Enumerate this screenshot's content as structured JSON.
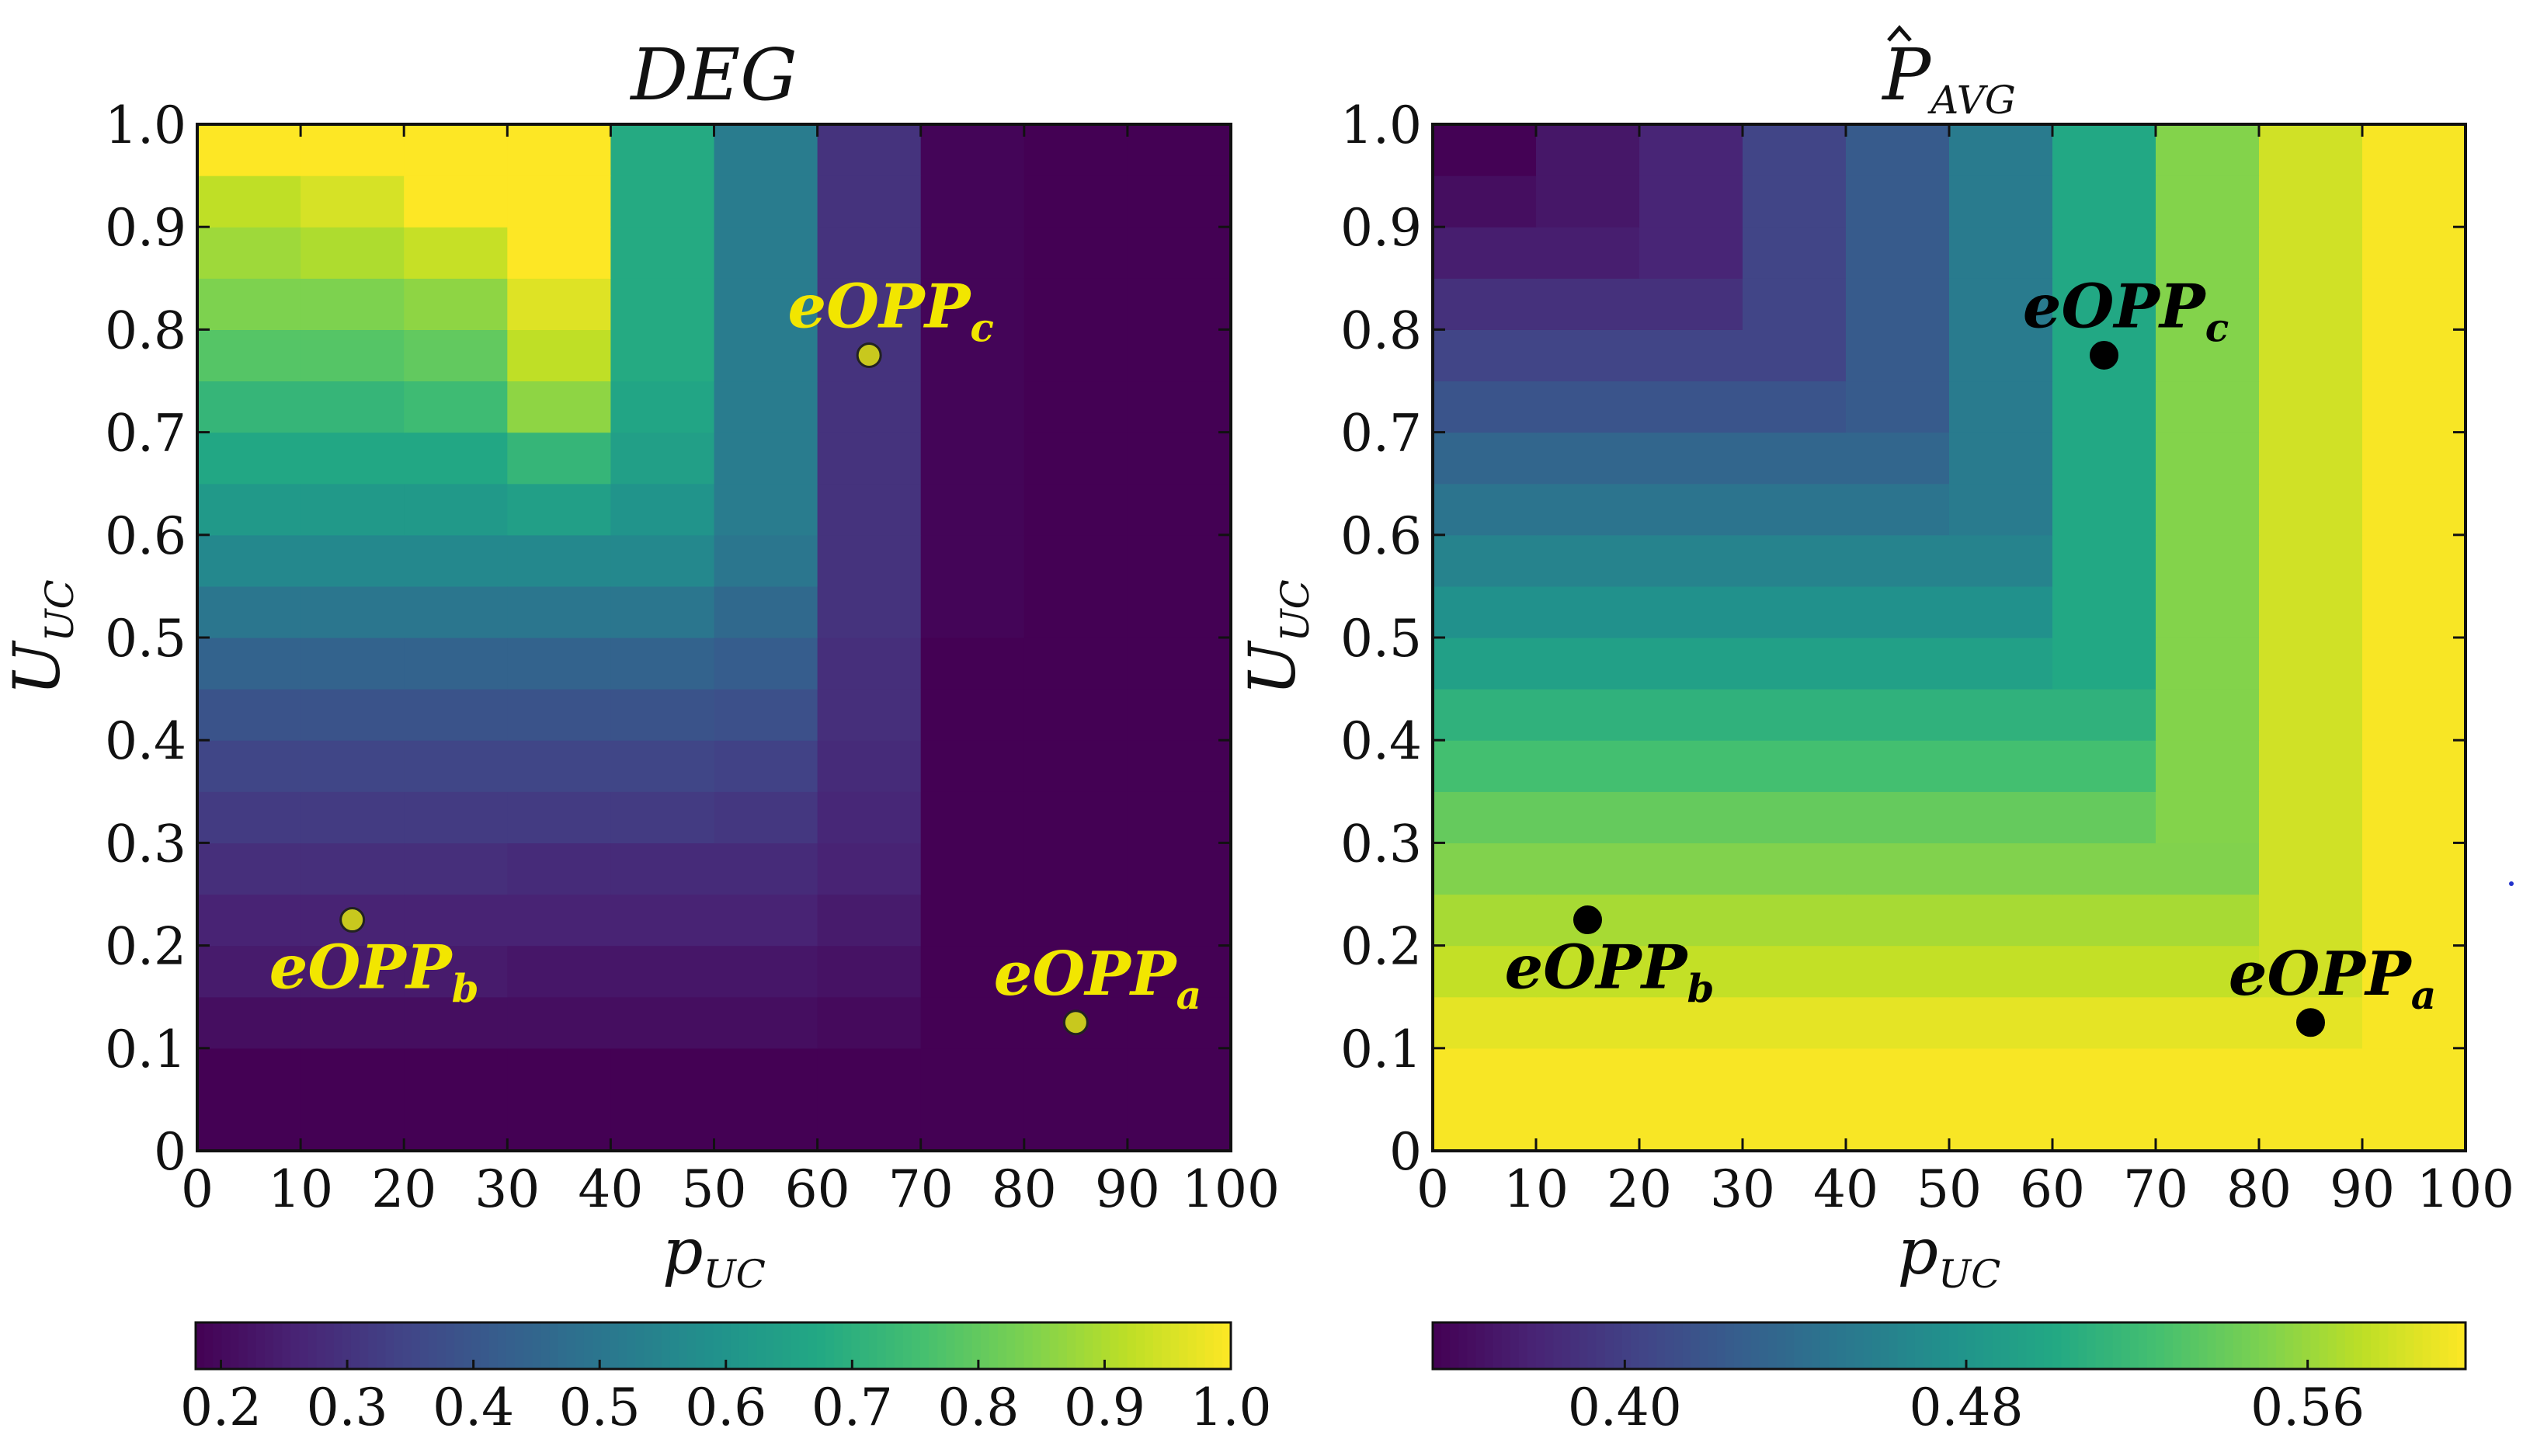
{
  "colors": {
    "viridis": [
      "#440154",
      "#482475",
      "#414487",
      "#355f8d",
      "#2a788e",
      "#21918c",
      "#22a884",
      "#44bf70",
      "#7ad151",
      "#bddf26",
      "#fde725"
    ],
    "left_marker_fill": "#c8c81e",
    "left_annotation": "#f2e600",
    "right_marker_fill": "#000000",
    "right_annotation": "#000000"
  },
  "chart_data": [
    {
      "type": "heatmap",
      "title": "DEG",
      "xlabel": "p",
      "xlabel_sub": "UC",
      "ylabel": "U",
      "ylabel_sub": "UC",
      "xlim": [
        0,
        100
      ],
      "ylim": [
        0,
        1.0
      ],
      "x_edges": [
        0,
        10,
        20,
        30,
        40,
        50,
        60,
        70,
        80,
        90,
        100
      ],
      "y_edges": [
        0,
        0.05,
        0.1,
        0.15,
        0.2,
        0.25,
        0.3,
        0.35,
        0.4,
        0.45,
        0.5,
        0.55,
        0.6,
        0.65,
        0.7,
        0.75,
        0.8,
        0.85,
        0.9,
        0.95,
        1.0
      ],
      "x_ticks": [
        "0",
        "10",
        "20",
        "30",
        "40",
        "50",
        "60",
        "70",
        "80",
        "90",
        "100"
      ],
      "y_ticks": [
        "0",
        "0.1",
        "0.2",
        "0.3",
        "0.4",
        "0.5",
        "0.6",
        "0.7",
        "0.8",
        "0.9",
        "1.0"
      ],
      "z": [
        [
          0.18,
          0.18,
          0.18,
          0.18,
          0.18,
          0.18,
          0.18,
          0.18,
          0.18,
          0.18
        ],
        [
          0.18,
          0.18,
          0.18,
          0.18,
          0.18,
          0.18,
          0.18,
          0.18,
          0.18,
          0.18
        ],
        [
          0.21,
          0.21,
          0.21,
          0.21,
          0.21,
          0.21,
          0.2,
          0.18,
          0.18,
          0.18
        ],
        [
          0.24,
          0.24,
          0.24,
          0.23,
          0.23,
          0.23,
          0.22,
          0.18,
          0.18,
          0.18
        ],
        [
          0.26,
          0.26,
          0.26,
          0.26,
          0.26,
          0.26,
          0.24,
          0.18,
          0.18,
          0.18
        ],
        [
          0.29,
          0.29,
          0.29,
          0.28,
          0.28,
          0.28,
          0.26,
          0.18,
          0.18,
          0.18
        ],
        [
          0.32,
          0.32,
          0.32,
          0.32,
          0.32,
          0.31,
          0.27,
          0.18,
          0.18,
          0.18
        ],
        [
          0.35,
          0.35,
          0.35,
          0.35,
          0.35,
          0.34,
          0.28,
          0.18,
          0.18,
          0.18
        ],
        [
          0.39,
          0.39,
          0.39,
          0.39,
          0.39,
          0.38,
          0.29,
          0.18,
          0.18,
          0.18
        ],
        [
          0.44,
          0.44,
          0.44,
          0.44,
          0.44,
          0.42,
          0.29,
          0.18,
          0.18,
          0.18
        ],
        [
          0.5,
          0.5,
          0.5,
          0.5,
          0.5,
          0.46,
          0.3,
          0.19,
          0.18,
          0.18
        ],
        [
          0.56,
          0.56,
          0.56,
          0.56,
          0.56,
          0.5,
          0.3,
          0.19,
          0.18,
          0.18
        ],
        [
          0.62,
          0.62,
          0.62,
          0.64,
          0.6,
          0.52,
          0.3,
          0.19,
          0.18,
          0.18
        ],
        [
          0.67,
          0.67,
          0.67,
          0.72,
          0.64,
          0.52,
          0.3,
          0.19,
          0.18,
          0.18
        ],
        [
          0.72,
          0.72,
          0.74,
          0.86,
          0.66,
          0.52,
          0.3,
          0.19,
          0.18,
          0.18
        ],
        [
          0.78,
          0.78,
          0.8,
          0.92,
          0.68,
          0.52,
          0.3,
          0.19,
          0.18,
          0.18
        ],
        [
          0.84,
          0.84,
          0.86,
          0.96,
          0.68,
          0.52,
          0.3,
          0.19,
          0.18,
          0.18
        ],
        [
          0.88,
          0.9,
          0.93,
          1.0,
          0.68,
          0.52,
          0.3,
          0.19,
          0.18,
          0.18
        ],
        [
          0.92,
          0.95,
          1.0,
          1.0,
          0.68,
          0.52,
          0.3,
          0.19,
          0.18,
          0.18
        ],
        [
          1.0,
          1.0,
          1.0,
          1.0,
          0.68,
          0.52,
          0.3,
          0.19,
          0.18,
          0.18
        ]
      ],
      "colorbar": {
        "vmin": 0.18,
        "vmax": 1.0,
        "ticks": [
          0.2,
          0.3,
          0.4,
          0.5,
          0.6,
          0.7,
          0.8,
          0.9,
          1.0
        ],
        "tick_labels": [
          "0.2",
          "0.3",
          "0.4",
          "0.5",
          "0.6",
          "0.7",
          "0.8",
          "0.9",
          "1.0"
        ]
      },
      "points": [
        {
          "name": "eOPP",
          "sub": "c",
          "x": 65,
          "y": 0.775,
          "label_pos": "above"
        },
        {
          "name": "eOPP",
          "sub": "b",
          "x": 15,
          "y": 0.225,
          "label_pos": "below"
        },
        {
          "name": "eOPP",
          "sub": "a",
          "x": 85,
          "y": 0.125,
          "label_pos": "above"
        }
      ]
    },
    {
      "type": "heatmap",
      "title": "P",
      "title_sub": "AVG",
      "title_hat": true,
      "xlabel": "p",
      "xlabel_sub": "UC",
      "ylabel": "U",
      "ylabel_sub": "UC",
      "xlim": [
        0,
        100
      ],
      "ylim": [
        0,
        1.0
      ],
      "x_edges": [
        0,
        10,
        20,
        30,
        40,
        50,
        60,
        70,
        80,
        90,
        100
      ],
      "y_edges": [
        0,
        0.05,
        0.1,
        0.15,
        0.2,
        0.25,
        0.3,
        0.35,
        0.4,
        0.45,
        0.5,
        0.55,
        0.6,
        0.65,
        0.7,
        0.75,
        0.8,
        0.85,
        0.9,
        0.95,
        1.0
      ],
      "x_ticks": [
        "0",
        "10",
        "20",
        "30",
        "40",
        "50",
        "60",
        "70",
        "80",
        "90",
        "100"
      ],
      "y_ticks": [
        "0",
        "0.1",
        "0.2",
        "0.3",
        "0.4",
        "0.5",
        "0.6",
        "0.7",
        "0.8",
        "0.9",
        "1.0"
      ],
      "z": [
        [
          0.595,
          0.595,
          0.595,
          0.595,
          0.595,
          0.595,
          0.595,
          0.595,
          0.595,
          0.595
        ],
        [
          0.595,
          0.595,
          0.595,
          0.595,
          0.595,
          0.595,
          0.595,
          0.595,
          0.595,
          0.595
        ],
        [
          0.588,
          0.588,
          0.588,
          0.588,
          0.588,
          0.588,
          0.588,
          0.588,
          0.588,
          0.595
        ],
        [
          0.575,
          0.575,
          0.575,
          0.575,
          0.575,
          0.575,
          0.575,
          0.575,
          0.58,
          0.595
        ],
        [
          0.565,
          0.565,
          0.565,
          0.565,
          0.565,
          0.565,
          0.565,
          0.565,
          0.58,
          0.595
        ],
        [
          0.551,
          0.551,
          0.551,
          0.551,
          0.551,
          0.551,
          0.551,
          0.551,
          0.58,
          0.595
        ],
        [
          0.539,
          0.539,
          0.539,
          0.539,
          0.539,
          0.539,
          0.539,
          0.552,
          0.58,
          0.595
        ],
        [
          0.524,
          0.524,
          0.524,
          0.524,
          0.524,
          0.524,
          0.524,
          0.552,
          0.58,
          0.595
        ],
        [
          0.51,
          0.51,
          0.51,
          0.51,
          0.51,
          0.51,
          0.51,
          0.552,
          0.58,
          0.595
        ],
        [
          0.492,
          0.492,
          0.492,
          0.492,
          0.492,
          0.492,
          0.5,
          0.552,
          0.58,
          0.595
        ],
        [
          0.476,
          0.476,
          0.476,
          0.476,
          0.476,
          0.476,
          0.5,
          0.552,
          0.58,
          0.595
        ],
        [
          0.462,
          0.462,
          0.462,
          0.462,
          0.462,
          0.462,
          0.5,
          0.552,
          0.58,
          0.595
        ],
        [
          0.448,
          0.448,
          0.448,
          0.448,
          0.448,
          0.455,
          0.5,
          0.552,
          0.58,
          0.595
        ],
        [
          0.434,
          0.434,
          0.434,
          0.434,
          0.434,
          0.455,
          0.5,
          0.552,
          0.58,
          0.595
        ],
        [
          0.418,
          0.418,
          0.418,
          0.418,
          0.424,
          0.455,
          0.5,
          0.552,
          0.58,
          0.595
        ],
        [
          0.404,
          0.404,
          0.404,
          0.404,
          0.424,
          0.455,
          0.5,
          0.552,
          0.58,
          0.595
        ],
        [
          0.389,
          0.389,
          0.389,
          0.404,
          0.424,
          0.455,
          0.5,
          0.552,
          0.58,
          0.595
        ],
        [
          0.375,
          0.375,
          0.38,
          0.404,
          0.424,
          0.455,
          0.5,
          0.552,
          0.58,
          0.595
        ],
        [
          0.364,
          0.37,
          0.38,
          0.404,
          0.424,
          0.455,
          0.5,
          0.552,
          0.58,
          0.595
        ],
        [
          0.356,
          0.37,
          0.38,
          0.404,
          0.424,
          0.455,
          0.5,
          0.552,
          0.58,
          0.595
        ]
      ],
      "colorbar": {
        "vmin": 0.355,
        "vmax": 0.597,
        "ticks": [
          0.4,
          0.48,
          0.56
        ],
        "tick_labels": [
          "0.40",
          "0.48",
          "0.56"
        ]
      },
      "points": [
        {
          "name": "eOPP",
          "sub": "c",
          "x": 65,
          "y": 0.775,
          "label_pos": "above"
        },
        {
          "name": "eOPP",
          "sub": "b",
          "x": 15,
          "y": 0.225,
          "label_pos": "below"
        },
        {
          "name": "eOPP",
          "sub": "a",
          "x": 85,
          "y": 0.125,
          "label_pos": "above"
        }
      ]
    }
  ]
}
